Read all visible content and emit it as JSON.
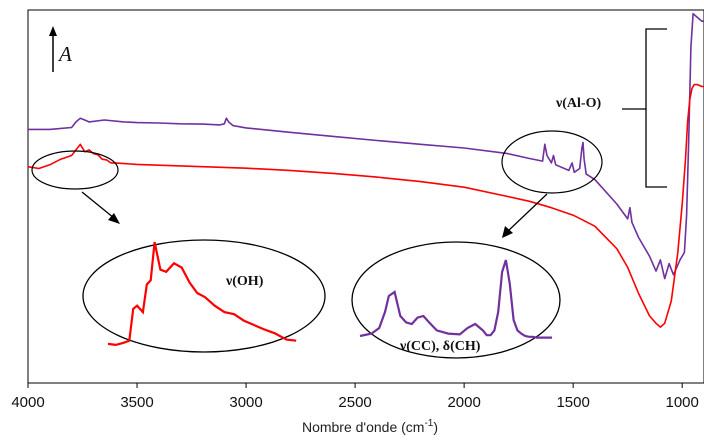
{
  "chart_data": {
    "type": "line",
    "xlabel_main": "Nombre d'onde (cm",
    "xlabel_sup": "-1",
    "xlabel_end": ")",
    "ylabel": "A",
    "xlim": [
      4000,
      900
    ],
    "x_ticks": [
      4000,
      3500,
      3000,
      2500,
      2000,
      1500,
      1000
    ],
    "x_tick_labels": [
      "4000",
      "3500",
      "3000",
      "2500",
      "2000",
      "1500",
      "1000"
    ],
    "y_axis_ticks": false,
    "grid": false,
    "annotations": {
      "al_o": "ν(Al-O)",
      "oh": "ν(OH)",
      "cc_ch": "ν(CC), δ(CH)"
    },
    "series": [
      {
        "color": "#7030A0",
        "x": [
          4000,
          3900,
          3800,
          3780,
          3760,
          3740,
          3720,
          3650,
          3560,
          3500,
          3400,
          3300,
          3200,
          3120,
          3100,
          3090,
          3080,
          3060,
          3000,
          2800,
          2600,
          2400,
          2200,
          2000,
          1800,
          1700,
          1640,
          1630,
          1620,
          1600,
          1590,
          1580,
          1520,
          1505,
          1495,
          1470,
          1460,
          1455,
          1450,
          1440,
          1400,
          1300,
          1250,
          1240,
          1230,
          1200,
          1150,
          1120,
          1100,
          1080,
          1060,
          1040,
          1010,
          990,
          980,
          970,
          960,
          950,
          930,
          910,
          900
        ],
        "y": [
          0.68,
          0.68,
          0.685,
          0.7,
          0.71,
          0.705,
          0.7,
          0.705,
          0.7,
          0.698,
          0.697,
          0.695,
          0.694,
          0.692,
          0.695,
          0.71,
          0.7,
          0.69,
          0.684,
          0.672,
          0.661,
          0.65,
          0.64,
          0.63,
          0.615,
          0.602,
          0.595,
          0.64,
          0.61,
          0.59,
          0.61,
          0.585,
          0.57,
          0.59,
          0.565,
          0.575,
          0.63,
          0.645,
          0.6,
          0.56,
          0.545,
          0.48,
          0.44,
          0.47,
          0.43,
          0.39,
          0.34,
          0.3,
          0.33,
          0.28,
          0.32,
          0.29,
          0.33,
          0.35,
          0.45,
          0.65,
          0.9,
          0.99,
          0.98,
          0.97,
          0.97
        ]
      },
      {
        "color": "#FF0000",
        "x": [
          4000,
          3950,
          3900,
          3850,
          3800,
          3780,
          3760,
          3740,
          3720,
          3700,
          3680,
          3660,
          3640,
          3620,
          3600,
          3550,
          3500,
          3400,
          3300,
          3200,
          3000,
          2800,
          2600,
          2400,
          2200,
          2000,
          1800,
          1700,
          1600,
          1500,
          1450,
          1400,
          1300,
          1250,
          1200,
          1150,
          1120,
          1100,
          1080,
          1050,
          1020,
          1000,
          985,
          975,
          965,
          955,
          945,
          930,
          910,
          900
        ],
        "y": [
          0.58,
          0.575,
          0.585,
          0.6,
          0.61,
          0.625,
          0.64,
          0.62,
          0.625,
          0.615,
          0.612,
          0.6,
          0.598,
          0.59,
          0.59,
          0.588,
          0.586,
          0.584,
          0.582,
          0.58,
          0.576,
          0.57,
          0.562,
          0.552,
          0.54,
          0.525,
          0.5,
          0.487,
          0.47,
          0.45,
          0.435,
          0.42,
          0.36,
          0.31,
          0.24,
          0.18,
          0.16,
          0.15,
          0.16,
          0.22,
          0.35,
          0.48,
          0.6,
          0.7,
          0.76,
          0.79,
          0.8,
          0.8,
          0.795,
          0.795
        ]
      }
    ],
    "inset_oh": {
      "color": "#FF0000",
      "x": [
        0,
        4,
        8,
        11,
        13,
        15,
        18,
        20,
        22,
        24,
        27,
        30,
        34,
        38,
        42,
        46,
        50,
        55,
        60,
        65,
        70,
        75,
        80,
        86,
        92,
        97
      ],
      "y": [
        0.02,
        0.01,
        0.03,
        0.05,
        0.35,
        0.38,
        0.32,
        0.58,
        0.62,
        0.98,
        0.72,
        0.7,
        0.78,
        0.74,
        0.6,
        0.5,
        0.46,
        0.38,
        0.32,
        0.3,
        0.24,
        0.2,
        0.16,
        0.12,
        0.06,
        0.05
      ]
    },
    "inset_cc": {
      "color": "#7030A0",
      "x": [
        0,
        6,
        10,
        13,
        15,
        18,
        21,
        24,
        27,
        30,
        33,
        36,
        40,
        46,
        52,
        56,
        60,
        64,
        66,
        68,
        70,
        72,
        74,
        76,
        78,
        80,
        82,
        84,
        86,
        88,
        90,
        92,
        95,
        100
      ],
      "y": [
        0.05,
        0.08,
        0.15,
        0.35,
        0.55,
        0.6,
        0.3,
        0.22,
        0.2,
        0.28,
        0.3,
        0.22,
        0.12,
        0.08,
        0.07,
        0.15,
        0.2,
        0.12,
        0.06,
        0.06,
        0.12,
        0.35,
        0.85,
        1.0,
        0.7,
        0.25,
        0.12,
        0.08,
        0.05,
        0.04,
        0.04,
        0.03,
        0.03,
        0.03
      ]
    }
  }
}
